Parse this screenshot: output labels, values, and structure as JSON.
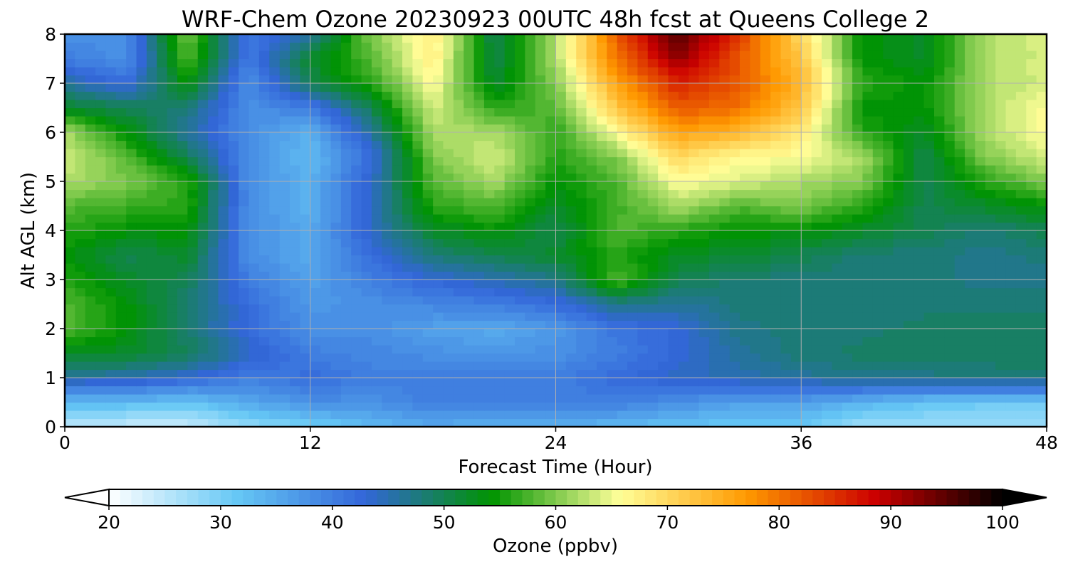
{
  "chart_data": {
    "type": "heatmap",
    "title": "WRF-Chem Ozone  20230923 00UTC 48h fcst at Queens College 2",
    "xlabel": "Forecast Time (Hour)",
    "ylabel": "Alt AGL (km)",
    "xlim": [
      0,
      48
    ],
    "ylim": [
      0,
      8
    ],
    "x_ticks": [
      0,
      12,
      24,
      36,
      48
    ],
    "y_ticks": [
      0,
      1,
      2,
      3,
      4,
      5,
      6,
      7,
      8
    ],
    "grid": true,
    "colorbar": {
      "label": "Ozone  (ppbv)",
      "min": 20,
      "max": 100,
      "ticks": [
        20,
        30,
        40,
        50,
        60,
        70,
        80,
        90,
        100
      ],
      "extend": "both",
      "colors": [
        "#ffffff",
        "#66c8f5",
        "#3366d9",
        "#009400",
        "#ffff99",
        "#ff9900",
        "#cc0000",
        "#000000"
      ]
    },
    "x": [
      0,
      3,
      6,
      9,
      12,
      15,
      18,
      21,
      24,
      27,
      30,
      33,
      36,
      39,
      42,
      45,
      48
    ],
    "y": [
      0,
      0.5,
      1,
      1.5,
      2,
      2.5,
      3,
      3.5,
      4,
      4.5,
      5,
      5.5,
      6,
      6.5,
      7,
      7.5,
      8
    ],
    "values": [
      [
        25,
        24,
        24,
        28,
        30,
        33,
        35,
        34,
        34,
        33,
        32,
        31,
        31,
        27,
        27,
        27,
        27
      ],
      [
        33,
        33,
        32,
        35,
        38,
        38,
        40,
        40,
        40,
        40,
        38,
        36,
        36,
        34,
        32,
        31,
        31
      ],
      [
        46,
        45,
        43,
        40,
        42,
        40,
        40,
        40,
        40,
        42,
        44,
        45,
        46,
        47,
        47,
        48,
        48
      ],
      [
        52,
        52,
        50,
        44,
        40,
        39,
        38,
        37,
        38,
        40,
        43,
        46,
        48,
        49,
        49,
        49,
        49
      ],
      [
        58,
        54,
        48,
        42,
        38,
        38,
        36,
        35,
        37,
        41,
        43,
        47,
        48,
        48,
        49,
        49,
        49
      ],
      [
        58,
        54,
        48,
        42,
        37,
        38,
        39,
        40,
        42,
        47,
        46,
        48,
        48,
        48,
        48,
        48,
        48
      ],
      [
        56,
        52,
        50,
        40,
        36,
        40,
        43,
        45,
        47,
        58,
        50,
        48,
        48,
        48,
        48,
        47,
        47
      ],
      [
        54,
        50,
        52,
        38,
        35,
        42,
        48,
        50,
        52,
        56,
        52,
        52,
        50,
        48,
        48,
        47,
        48
      ],
      [
        56,
        54,
        54,
        38,
        35,
        44,
        52,
        54,
        50,
        58,
        56,
        54,
        54,
        52,
        50,
        48,
        50
      ],
      [
        58,
        57,
        56,
        38,
        34,
        44,
        56,
        58,
        52,
        57,
        62,
        58,
        60,
        56,
        50,
        52,
        54
      ],
      [
        62,
        60,
        56,
        38,
        34,
        44,
        58,
        62,
        54,
        58,
        66,
        64,
        62,
        60,
        50,
        56,
        60
      ],
      [
        64,
        58,
        50,
        38,
        33,
        42,
        60,
        64,
        56,
        60,
        70,
        66,
        66,
        62,
        50,
        60,
        64
      ],
      [
        62,
        54,
        46,
        38,
        34,
        46,
        62,
        62,
        56,
        66,
        76,
        74,
        68,
        56,
        52,
        62,
        66
      ],
      [
        52,
        50,
        48,
        38,
        40,
        50,
        64,
        56,
        58,
        72,
        82,
        80,
        72,
        54,
        54,
        62,
        66
      ],
      [
        46,
        42,
        54,
        38,
        50,
        56,
        66,
        52,
        60,
        76,
        86,
        82,
        74,
        56,
        54,
        62,
        64
      ],
      [
        40,
        38,
        58,
        40,
        52,
        58,
        68,
        50,
        62,
        80,
        92,
        82,
        72,
        54,
        52,
        62,
        64
      ],
      [
        38,
        38,
        60,
        40,
        46,
        60,
        68,
        50,
        62,
        82,
        96,
        84,
        70,
        54,
        52,
        62,
        64
      ]
    ]
  }
}
